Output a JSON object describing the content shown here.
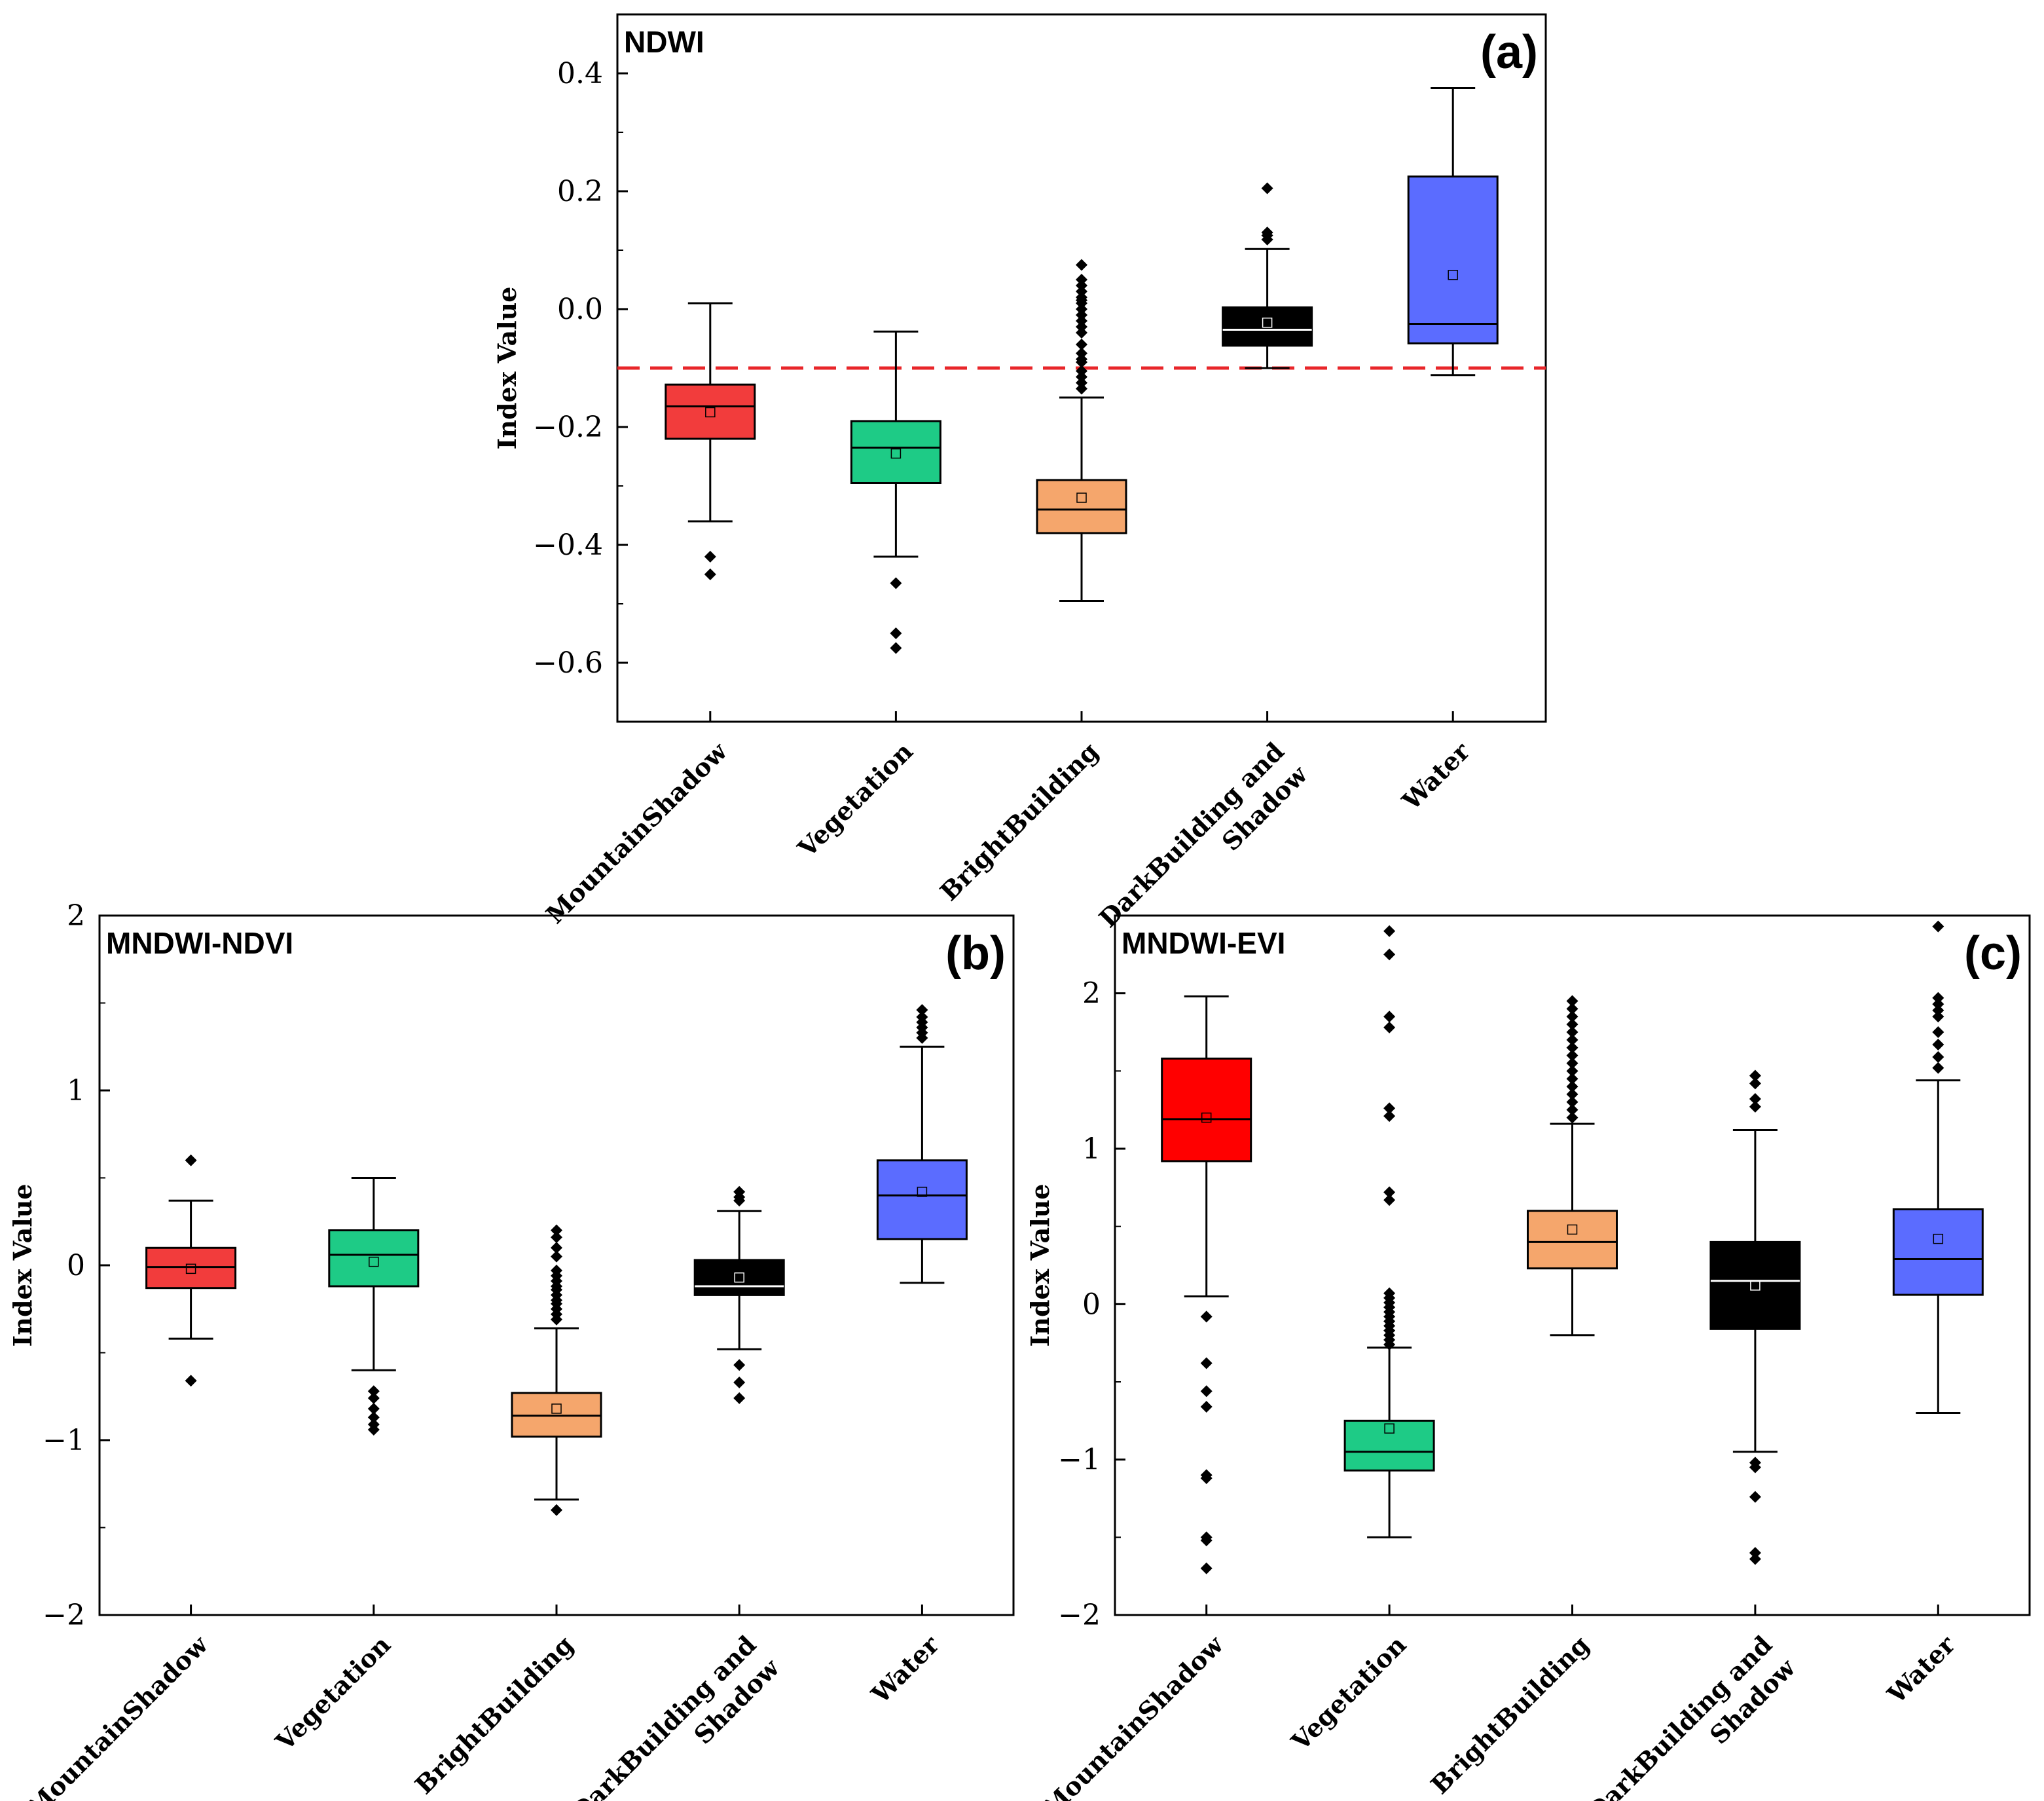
{
  "chart_data": [
    {
      "panel": "(a)",
      "title": "NDWI",
      "type": "box",
      "ylabel": "Index Value",
      "ylim": [
        -0.7,
        0.5
      ],
      "yticks": [
        0.4,
        0.2,
        0.0,
        -0.2,
        -0.4,
        -0.6
      ],
      "ytick_labels": [
        "0.4",
        "0.2",
        "0.0",
        "−0.2",
        "−0.4",
        "−0.6"
      ],
      "categories": [
        "MountainShadow",
        "Vegetation",
        "BrightBuilding",
        "DarkBuilding and Shadow",
        "Water"
      ],
      "reference_line": -0.1,
      "reference_line_color": "#e8262a",
      "boxes": [
        {
          "category": "MountainShadow",
          "color": "#f23c3c",
          "whisker_low": -0.36,
          "q1": -0.22,
          "median": -0.165,
          "q3": -0.128,
          "whisker_high": 0.01,
          "mean": -0.175,
          "outliers": [
            -0.42,
            -0.45
          ]
        },
        {
          "category": "Vegetation",
          "color": "#1ecb86",
          "whisker_low": -0.42,
          "q1": -0.295,
          "median": -0.235,
          "q3": -0.19,
          "whisker_high": -0.038,
          "mean": -0.245,
          "outliers": [
            -0.465,
            -0.55,
            -0.575
          ]
        },
        {
          "category": "BrightBuilding",
          "color": "#f5a66c",
          "whisker_low": -0.495,
          "q1": -0.38,
          "median": -0.34,
          "q3": -0.29,
          "whisker_high": -0.15,
          "mean": -0.32,
          "outliers": [
            0.075,
            0.05,
            0.04,
            0.03,
            0.02,
            0.015,
            0.01,
            0.0,
            -0.01,
            -0.02,
            -0.03,
            -0.04,
            -0.06,
            -0.075,
            -0.085,
            -0.09,
            -0.105,
            -0.115,
            -0.125,
            -0.135
          ]
        },
        {
          "category": "DarkBuilding and Shadow",
          "color": "#000000",
          "whisker_low": -0.1,
          "q1": -0.062,
          "median": -0.035,
          "q3": 0.003,
          "whisker_high": 0.102,
          "mean": -0.023,
          "outliers": [
            0.205,
            0.13,
            0.125,
            0.118
          ]
        },
        {
          "category": "Water",
          "color": "#5b6cff",
          "whisker_low": -0.112,
          "q1": -0.058,
          "median": -0.025,
          "q3": 0.225,
          "whisker_high": 0.375,
          "mean": 0.058,
          "outliers": []
        }
      ]
    },
    {
      "panel": "(b)",
      "title": "MNDWI-NDVI",
      "type": "box",
      "ylabel": "Index Value",
      "ylim": [
        -2,
        2
      ],
      "yticks": [
        2,
        1,
        0,
        -1,
        -2
      ],
      "ytick_labels": [
        "2",
        "1",
        "0",
        "−1",
        "−2"
      ],
      "categories": [
        "MountainShadow",
        "Vegetation",
        "BrightBuilding",
        "DarkBuilding and Shadow",
        "Water"
      ],
      "boxes": [
        {
          "category": "MountainShadow",
          "color": "#f23c3c",
          "whisker_low": -0.42,
          "q1": -0.13,
          "median": -0.01,
          "q3": 0.1,
          "whisker_high": 0.37,
          "mean": -0.02,
          "outliers": [
            0.6,
            -0.66
          ]
        },
        {
          "category": "Vegetation",
          "color": "#1ecb86",
          "whisker_low": -0.6,
          "q1": -0.12,
          "median": 0.06,
          "q3": 0.2,
          "whisker_high": 0.5,
          "mean": 0.02,
          "outliers": [
            -0.72,
            -0.76,
            -0.82,
            -0.87,
            -0.91,
            -0.94
          ]
        },
        {
          "category": "BrightBuilding",
          "color": "#f5a66c",
          "whisker_low": -1.34,
          "q1": -0.98,
          "median": -0.86,
          "q3": -0.73,
          "whisker_high": -0.36,
          "mean": -0.82,
          "outliers": [
            0.2,
            0.16,
            0.1,
            0.05,
            -0.03,
            -0.06,
            -0.09,
            -0.12,
            -0.14,
            -0.17,
            -0.2,
            -0.22,
            -0.25,
            -0.28,
            -0.31,
            -1.4
          ]
        },
        {
          "category": "DarkBuilding and Shadow",
          "color": "#000000",
          "whisker_low": -0.48,
          "q1": -0.17,
          "median": -0.12,
          "q3": 0.03,
          "whisker_high": 0.31,
          "mean": -0.07,
          "outliers": [
            0.42,
            0.39,
            0.37,
            -0.57,
            -0.67,
            -0.76
          ]
        },
        {
          "category": "Water",
          "color": "#5b6cff",
          "whisker_low": -0.1,
          "q1": 0.15,
          "median": 0.4,
          "q3": 0.6,
          "whisker_high": 1.25,
          "mean": 0.42,
          "outliers": [
            1.46,
            1.42,
            1.39,
            1.36,
            1.33,
            1.3
          ]
        }
      ]
    },
    {
      "panel": "(c)",
      "title": "MNDWI-EVI",
      "type": "box",
      "ylabel": "Index Value",
      "ylim": [
        -2,
        2.5
      ],
      "yticks": [
        2,
        1,
        0,
        -1,
        -2
      ],
      "ytick_labels": [
        "2",
        "1",
        "0",
        "−1",
        "−2"
      ],
      "categories": [
        "MountainShadow",
        "Vegetation",
        "BrightBuilding",
        "DarkBuilding and Shadow",
        "Water"
      ],
      "boxes": [
        {
          "category": "MountainShadow",
          "color": "#ff0000",
          "whisker_low": 0.05,
          "q1": 0.92,
          "median": 1.19,
          "q3": 1.58,
          "whisker_high": 1.98,
          "mean": 1.2,
          "outliers": [
            -0.08,
            -0.38,
            -0.56,
            -0.66,
            -1.1,
            -1.12,
            -1.5,
            -1.52,
            -1.7
          ]
        },
        {
          "category": "Vegetation",
          "color": "#1ecb86",
          "whisker_low": -1.5,
          "q1": -1.07,
          "median": -0.95,
          "q3": -0.75,
          "whisker_high": -0.28,
          "mean": -0.8,
          "outliers": [
            2.4,
            2.25,
            1.85,
            1.78,
            1.26,
            1.21,
            0.72,
            0.67,
            0.07,
            0.04,
            0.01,
            -0.02,
            -0.05,
            -0.08,
            -0.11,
            -0.14,
            -0.17,
            -0.2,
            -0.23,
            -0.26
          ]
        },
        {
          "category": "BrightBuilding",
          "color": "#f5a66c",
          "whisker_low": -0.2,
          "q1": 0.23,
          "median": 0.4,
          "q3": 0.6,
          "whisker_high": 1.16,
          "mean": 0.48,
          "outliers": [
            1.95,
            1.9,
            1.85,
            1.8,
            1.75,
            1.7,
            1.65,
            1.6,
            1.55,
            1.5,
            1.45,
            1.4,
            1.35,
            1.3,
            1.25,
            1.2
          ]
        },
        {
          "category": "DarkBuilding and Shadow",
          "color": "#000000",
          "whisker_low": -0.95,
          "q1": -0.16,
          "median": 0.15,
          "q3": 0.4,
          "whisker_high": 1.12,
          "mean": 0.12,
          "outliers": [
            1.47,
            1.42,
            1.32,
            1.27,
            -1.02,
            -1.05,
            -1.24,
            -1.6,
            -1.64
          ]
        },
        {
          "category": "Water",
          "color": "#5b6cff",
          "whisker_low": -0.7,
          "q1": 0.06,
          "median": 0.29,
          "q3": 0.61,
          "whisker_high": 1.44,
          "mean": 0.42,
          "outliers": [
            2.43,
            1.97,
            1.93,
            1.89,
            1.85,
            1.75,
            1.67,
            1.59,
            1.52
          ]
        }
      ]
    }
  ]
}
